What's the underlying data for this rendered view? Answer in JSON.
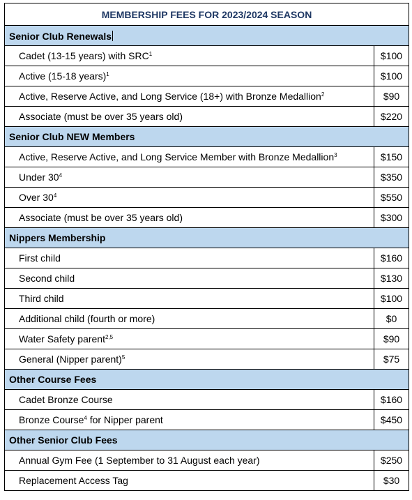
{
  "title": "MEMBERSHIP FEES FOR 2023/2024 SEASON",
  "sections": [
    {
      "heading": "Senior Club Renewals",
      "rows": [
        {
          "label": "Cadet (13-15 years) with SRC",
          "sup": "1",
          "price": "$100"
        },
        {
          "label": "Active (15-18 years)",
          "sup": "1",
          "price": "$100"
        },
        {
          "label": "Active, Reserve Active, and Long Service (18+) with Bronze Medallion",
          "sup": "2",
          "price": "$90"
        },
        {
          "label": "Associate (must be over 35 years old)",
          "sup": "",
          "price": "$220"
        }
      ]
    },
    {
      "heading": "Senior Club NEW Members",
      "rows": [
        {
          "label": "Active, Reserve Active, and Long Service Member with Bronze Medallion",
          "sup": "3",
          "price": "$150"
        },
        {
          "label": "Under 30",
          "sup": "4",
          "price": "$350"
        },
        {
          "label": "Over 30",
          "sup": "4",
          "price": "$550"
        },
        {
          "label": "Associate (must be over 35 years old)",
          "sup": "",
          "price": "$300"
        }
      ]
    },
    {
      "heading": "Nippers Membership",
      "rows": [
        {
          "label": "First child",
          "sup": "",
          "price": "$160"
        },
        {
          "label": "Second child",
          "sup": "",
          "price": "$130"
        },
        {
          "label": "Third child",
          "sup": "",
          "price": "$100"
        },
        {
          "label": "Additional child (fourth or more)",
          "sup": "",
          "price": "$0"
        },
        {
          "label": "Water Safety parent",
          "sup": "2,5",
          "price": "$90"
        },
        {
          "label": "General (Nipper parent)",
          "sup": "5",
          "price": "$75"
        }
      ]
    },
    {
      "heading": "Other Course Fees",
      "rows": [
        {
          "label": "Cadet Bronze Course",
          "sup": "",
          "price": "$160"
        },
        {
          "label": "Bronze Course",
          "sup": "4",
          "suffix": " for Nipper parent",
          "price": "$450"
        }
      ]
    },
    {
      "heading": "Other Senior Club Fees",
      "rows": [
        {
          "label": "Annual Gym Fee (1 September to 31 August each year)",
          "sup": "",
          "price": "$250"
        },
        {
          "label": "Replacement Access Tag",
          "sup": "",
          "price": "$30"
        }
      ]
    }
  ]
}
